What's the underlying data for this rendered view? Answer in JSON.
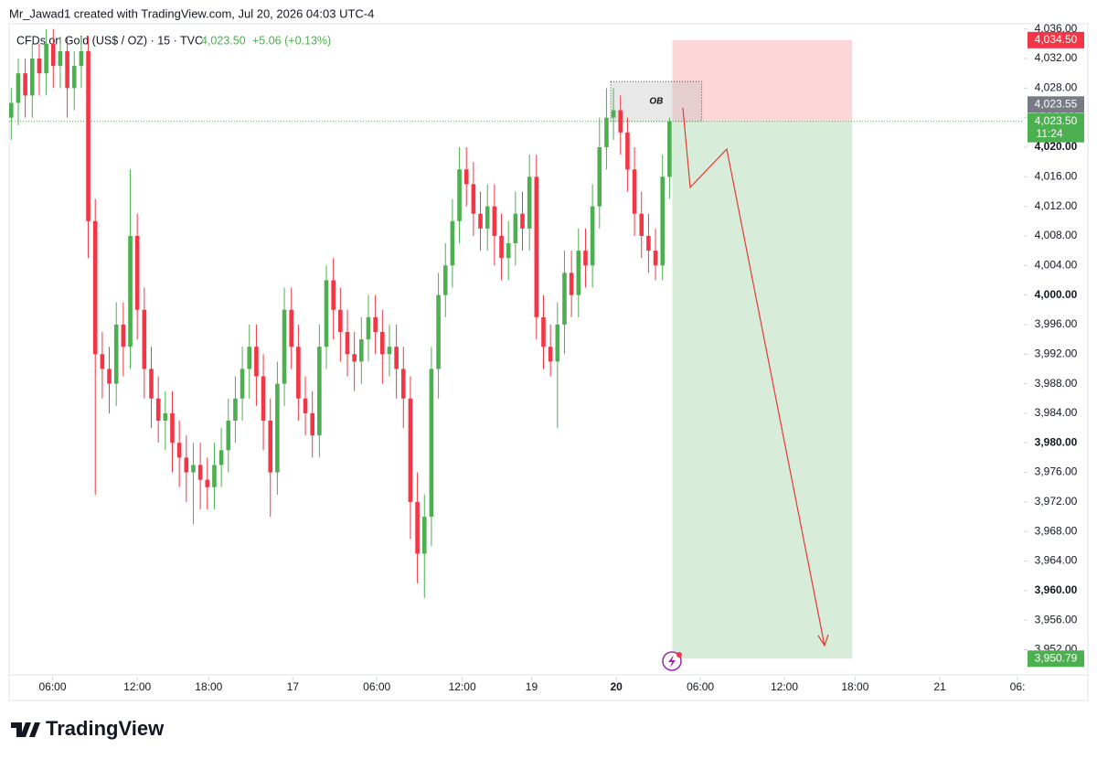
{
  "header": {
    "credit": "Mr_Jawad1 created with TradingView.com, Jul 20, 2026 04:03 UTC-4",
    "brand": "TradingView"
  },
  "chart_data": {
    "type": "candlestick",
    "legend": {
      "symbol": "CFDs on Gold (US$ / OZ) · 15 · TVC",
      "price": "4,023.50",
      "change": "+5.06 (+0.13%)"
    },
    "up_color": "#4caf50",
    "down_color": "#f23645",
    "x": [
      0,
      1,
      2,
      3,
      4,
      5,
      6,
      7,
      8,
      9,
      10,
      11,
      12,
      13,
      14,
      15,
      16,
      17,
      18,
      19,
      20,
      21,
      22,
      23,
      24,
      25,
      26,
      27,
      28,
      29,
      30,
      31,
      32,
      33,
      34,
      35,
      36,
      37,
      38,
      39,
      40,
      41,
      42,
      43,
      44,
      45,
      46,
      47,
      48,
      49,
      50,
      51,
      52,
      53,
      54,
      55,
      56,
      57,
      58,
      59,
      60,
      61,
      62,
      63,
      64,
      65,
      66,
      67,
      68,
      69,
      70,
      71,
      72,
      73,
      74,
      75,
      76,
      77,
      78,
      79,
      80,
      81,
      82,
      83,
      84,
      85,
      86,
      87,
      88,
      89,
      90,
      91,
      92,
      93,
      94
    ],
    "open": [
      4024,
      4026,
      4030,
      4027,
      4032,
      4030,
      4034,
      4031,
      4033,
      4028,
      4031,
      4033,
      4010,
      3992,
      3990,
      3988,
      3996,
      3993,
      4008,
      3998,
      3990,
      3986,
      3983,
      3984,
      3980,
      3978,
      3976,
      3977,
      3975,
      3974,
      3977,
      3979,
      3983,
      3986,
      3990,
      3993,
      3989,
      3983,
      3976,
      3988,
      3998,
      3993,
      3986,
      3984,
      3981,
      3993,
      4002,
      3998,
      3995,
      3992,
      3991,
      3994,
      3997,
      3995,
      3992,
      3993,
      3990,
      3986,
      3972,
      3965,
      3970,
      3990,
      4000,
      4004,
      4010,
      4017,
      4015,
      4011,
      4009,
      4012,
      4008,
      4005,
      4007,
      4011,
      4009,
      4016,
      3997,
      3993,
      3991,
      3996,
      4003,
      4000,
      4006,
      4004,
      4012,
      4020,
      4024,
      4025,
      4022,
      4017,
      4011,
      4008,
      4006,
      4004,
      4016
    ],
    "high": [
      4028,
      4032,
      4032,
      4034,
      4034,
      4036,
      4036,
      4035,
      4035,
      4033,
      4035,
      4035,
      4013,
      3995,
      3993,
      3999,
      3999,
      4017,
      4011,
      4001,
      3993,
      3989,
      3987,
      3987,
      3983,
      3981,
      3980,
      3980,
      3978,
      3980,
      3982,
      3986,
      3989,
      3993,
      3996,
      3996,
      3992,
      3986,
      3991,
      4001,
      4001,
      3996,
      3989,
      3987,
      3996,
      4004,
      4005,
      4001,
      3998,
      3995,
      3997,
      4000,
      4000,
      3998,
      3996,
      3996,
      3993,
      3989,
      3976,
      3973,
      3993,
      4003,
      4007,
      4013,
      4020,
      4020,
      4018,
      4014,
      4015,
      4015,
      4011,
      4010,
      4014,
      4014,
      4019,
      4019,
      4000,
      3996,
      3999,
      4006,
      4006,
      4009,
      4009,
      4015,
      4024,
      4028,
      4028,
      4027,
      4024,
      4020,
      4014,
      4011,
      4009,
      4019,
      4024
    ],
    "low": [
      4021,
      4023,
      4024,
      4024,
      4027,
      4027,
      4028,
      4028,
      4024,
      4025,
      4028,
      4005,
      3973,
      3986,
      3984,
      3985,
      3989,
      3990,
      3994,
      3986,
      3982,
      3980,
      3979,
      3976,
      3974,
      3972,
      3969,
      3971,
      3971,
      3971,
      3974,
      3976,
      3980,
      3983,
      3986,
      3985,
      3979,
      3970,
      3973,
      3985,
      3990,
      3983,
      3981,
      3978,
      3978,
      3990,
      3994,
      3991,
      3989,
      3987,
      3988,
      3991,
      3992,
      3988,
      3989,
      3986,
      3982,
      3967,
      3961,
      3959,
      3966,
      3986,
      3997,
      4001,
      4007,
      4012,
      4008,
      4006,
      4006,
      4004,
      4002,
      4002,
      4004,
      4006,
      4006,
      3994,
      3990,
      3989,
      3982,
      3992,
      3997,
      3997,
      4001,
      4001,
      4009,
      4017,
      4021,
      4019,
      4014,
      4008,
      4005,
      4003,
      4002,
      4002,
      4013
    ],
    "close": [
      4026,
      4030,
      4027,
      4032,
      4030,
      4034,
      4031,
      4033,
      4028,
      4031,
      4033,
      4010,
      3992,
      3990,
      3988,
      3996,
      3993,
      4008,
      3998,
      3990,
      3986,
      3983,
      3984,
      3980,
      3978,
      3976,
      3977,
      3975,
      3974,
      3977,
      3979,
      3983,
      3986,
      3990,
      3993,
      3989,
      3983,
      3976,
      3988,
      3998,
      3993,
      3986,
      3984,
      3981,
      3993,
      4002,
      3998,
      3995,
      3992,
      3991,
      3994,
      3997,
      3995,
      3992,
      3993,
      3990,
      3986,
      3972,
      3965,
      3970,
      3990,
      4000,
      4004,
      4010,
      4017,
      4015,
      4011,
      4009,
      4012,
      4008,
      4005,
      4007,
      4011,
      4009,
      4016,
      3997,
      3993,
      3991,
      3996,
      4003,
      4000,
      4006,
      4004,
      4012,
      4020,
      4024,
      4025,
      4022,
      4017,
      4011,
      4008,
      4006,
      4004,
      4016,
      4023.5
    ],
    "xlim": [
      -0.3,
      144.6
    ],
    "xticks": [
      {
        "value": 5.9,
        "label": "06:00"
      },
      {
        "value": 18.0,
        "label": "12:00"
      },
      {
        "value": 28.2,
        "label": "18:00"
      },
      {
        "value": 40.2,
        "label": "17"
      },
      {
        "value": 52.2,
        "label": "06:00"
      },
      {
        "value": 64.4,
        "label": "12:00"
      },
      {
        "value": 74.3,
        "label": "19"
      },
      {
        "value": 86.4,
        "label": "20"
      },
      {
        "value": 98.4,
        "label": "06:00"
      },
      {
        "value": 110.4,
        "label": "12:00"
      },
      {
        "value": 120.5,
        "label": "18:00"
      },
      {
        "value": 132.6,
        "label": "21"
      },
      {
        "value": 143.7,
        "label": "06:"
      }
    ],
    "ylim": [
      3948.6,
      4037.2
    ],
    "yticks": [
      {
        "value": 4036,
        "label": "4,036.00"
      },
      {
        "value": 4032,
        "label": "4,032.00"
      },
      {
        "value": 4028,
        "label": "4,028.00"
      },
      {
        "value": 4024,
        "label": "4,024.00"
      },
      {
        "value": 4020,
        "label": "4,020.00"
      },
      {
        "value": 4016,
        "label": "4,016.00"
      },
      {
        "value": 4012,
        "label": "4,012.00"
      },
      {
        "value": 4008,
        "label": "4,008.00"
      },
      {
        "value": 4004,
        "label": "4,004.00"
      },
      {
        "value": 4000,
        "label": "4,000.00"
      },
      {
        "value": 3996,
        "label": "3,996.00"
      },
      {
        "value": 3992,
        "label": "3,992.00"
      },
      {
        "value": 3988,
        "label": "3,988.00"
      },
      {
        "value": 3984,
        "label": "3,984.00"
      },
      {
        "value": 3980,
        "label": "3,980.00"
      },
      {
        "value": 3976,
        "label": "3,976.00"
      },
      {
        "value": 3972,
        "label": "3,972.00"
      },
      {
        "value": 3968,
        "label": "3,968.00"
      },
      {
        "value": 3964,
        "label": "3,964.00"
      },
      {
        "value": 3960,
        "label": "3,960.00"
      },
      {
        "value": 3956,
        "label": "3,956.00"
      },
      {
        "value": 3952,
        "label": "3,952.00"
      }
    ],
    "bid": {
      "value": 4023.55,
      "label": "4,023.55"
    },
    "countdown": "11:24",
    "position": {
      "x": [
        94.4,
        120.1
      ],
      "entry": {
        "value": 4023.5,
        "label": "4,023.50"
      },
      "stop": {
        "value": 4034.5,
        "label": "4,034.50"
      },
      "target": {
        "value": 3950.79,
        "label": "3,950.79"
      }
    },
    "order_block": {
      "label": "OB",
      "x": [
        85.6,
        98.6
      ],
      "y": [
        4023.5,
        4028.9
      ]
    }
  }
}
